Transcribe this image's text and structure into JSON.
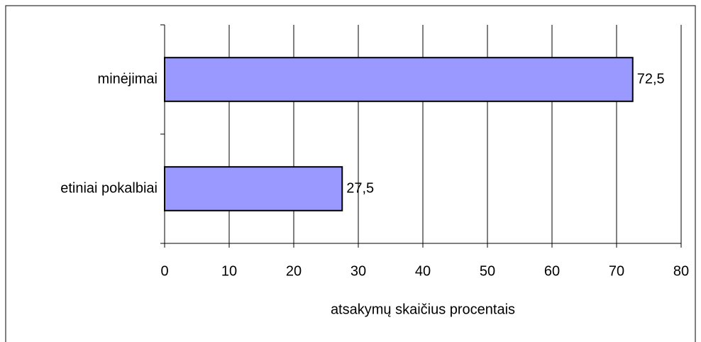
{
  "chart_data": {
    "type": "bar",
    "orientation": "horizontal",
    "categories": [
      "minėjimai",
      "etiniai pokalbiai"
    ],
    "values": [
      72.5,
      27.5
    ],
    "value_labels": [
      "72,5",
      "27,5"
    ],
    "color": "#9999ff",
    "xlabel": "atsakymų skaičius procentais",
    "xlim": [
      0,
      80
    ],
    "xticks": [
      0,
      10,
      20,
      30,
      40,
      50,
      60,
      70,
      80
    ],
    "grid": true
  }
}
